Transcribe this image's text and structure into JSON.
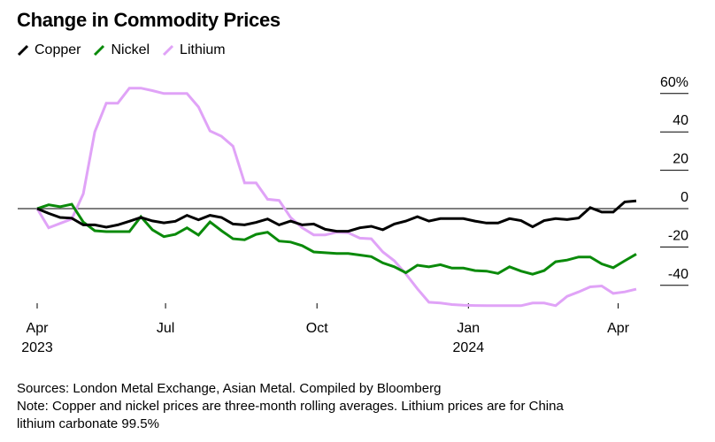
{
  "chart_data": {
    "type": "line",
    "title": "Change in Commodity Prices",
    "x": [
      "2023-04-14",
      "2023-04-21",
      "2023-04-28",
      "2023-05-05",
      "2023-05-12",
      "2023-05-19",
      "2023-05-26",
      "2023-06-02",
      "2023-06-09",
      "2023-06-16",
      "2023-06-23",
      "2023-06-30",
      "2023-07-07",
      "2023-07-14",
      "2023-07-21",
      "2023-07-28",
      "2023-08-04",
      "2023-08-11",
      "2023-08-18",
      "2023-08-25",
      "2023-09-01",
      "2023-09-08",
      "2023-09-15",
      "2023-09-22",
      "2023-09-29",
      "2023-10-06",
      "2023-10-13",
      "2023-10-20",
      "2023-10-27",
      "2023-11-03",
      "2023-11-10",
      "2023-11-17",
      "2023-11-24",
      "2023-12-01",
      "2023-12-08",
      "2023-12-15",
      "2023-12-22",
      "2023-12-29",
      "2024-01-05",
      "2024-01-12",
      "2024-01-19",
      "2024-01-26",
      "2024-02-02",
      "2024-02-09",
      "2024-02-16",
      "2024-02-23",
      "2024-03-01",
      "2024-03-08",
      "2024-03-15",
      "2024-03-22",
      "2024-03-29",
      "2024-04-05",
      "2024-04-12"
    ],
    "series": [
      {
        "name": "Copper",
        "color": "#000000",
        "values": [
          0,
          -2.5,
          -4.6,
          -5,
          -8.5,
          -8.5,
          -9.7,
          -8.5,
          -6.6,
          -4.6,
          -6.4,
          -7.4,
          -6.6,
          -3.5,
          -5.8,
          -3.5,
          -4.6,
          -8,
          -8.5,
          -7.2,
          -5.4,
          -8.5,
          -6.5,
          -8.5,
          -8,
          -10.8,
          -11.8,
          -11.8,
          -10,
          -9.2,
          -11,
          -8,
          -6.5,
          -4.2,
          -6.5,
          -5.2,
          -5.2,
          -5.2,
          -6.5,
          -7.5,
          -7.5,
          -5.2,
          -6.2,
          -9.5,
          -6.2,
          -5.2,
          -5.7,
          -4.9,
          0.5,
          -1.8,
          -1.8,
          3.5,
          4
        ]
      },
      {
        "name": "Nickel",
        "color": "#0a8a0a",
        "values": [
          0,
          2,
          1,
          2.3,
          -7,
          -11.5,
          -12,
          -12,
          -12,
          -4.2,
          -11,
          -14.6,
          -13.4,
          -10,
          -13.8,
          -6.9,
          -11.5,
          -15.7,
          -16.2,
          -13.4,
          -12.3,
          -16.9,
          -17.4,
          -19.3,
          -22.6,
          -23,
          -23.4,
          -23.4,
          -24.2,
          -25,
          -28.3,
          -30.3,
          -33.4,
          -29.5,
          -30.3,
          -29.2,
          -31,
          -31,
          -32.3,
          -32.6,
          -33.8,
          -30.3,
          -32.6,
          -34.2,
          -32.3,
          -27.7,
          -26.8,
          -25.2,
          -25.2,
          -28.8,
          -30.8,
          -27.2,
          -23.7
        ]
      },
      {
        "name": "Lithium",
        "color": "#e0a3f7",
        "values": [
          0,
          -10,
          -7.7,
          -5.4,
          7.7,
          40,
          55,
          55,
          62.8,
          62.8,
          61.5,
          60,
          60,
          60,
          53,
          40.5,
          37.7,
          32.6,
          13.4,
          13.4,
          4.9,
          4.3,
          -4.6,
          -10,
          -13.7,
          -13.7,
          -12.3,
          -12.6,
          -15.4,
          -15.7,
          -22.6,
          -27.2,
          -34,
          -41.8,
          -48.8,
          -49.2,
          -50,
          -50.3,
          -50.5,
          -50.6,
          -50.6,
          -50.6,
          -50.6,
          -49.2,
          -49.2,
          -50.6,
          -45.7,
          -43.4,
          -40.8,
          -40.3,
          -44.2,
          -43.4,
          -42
        ]
      }
    ],
    "yticks": [
      60,
      40,
      20,
      0,
      -20,
      -40
    ],
    "ytick_labels": [
      "60%",
      "40",
      "20",
      "0",
      "-20",
      "-40"
    ],
    "ylim": [
      -52,
      64
    ],
    "xticks": [
      {
        "date": "2023-04-01",
        "label": "Apr",
        "sublabel": "2023"
      },
      {
        "date": "2023-07-01",
        "label": "Jul",
        "sublabel": ""
      },
      {
        "date": "2023-10-01",
        "label": "Oct",
        "sublabel": ""
      },
      {
        "date": "2024-01-01",
        "label": "Jan",
        "sublabel": "2024"
      },
      {
        "date": "2024-04-01",
        "label": "Apr",
        "sublabel": ""
      }
    ],
    "xlabel": "",
    "ylabel": "",
    "grid": false,
    "legend": "top-left",
    "y_axis_side": "right"
  },
  "footer": {
    "sources": "Sources: London Metal Exchange, Asian Metal. Compiled by Bloomberg",
    "note_line1": "Note: Copper and nickel prices are three-month rolling averages. Lithium prices are for China",
    "note_line2": "lithium carbonate 99.5%"
  }
}
